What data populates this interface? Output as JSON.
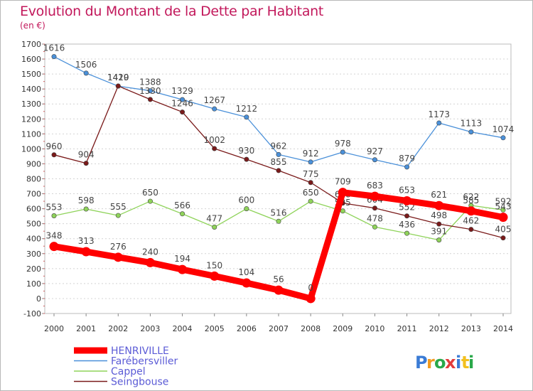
{
  "header": {
    "title": "Evolution du Montant de la Dette par Habitant",
    "unit": "(en €)"
  },
  "logo": {
    "text": "Proxiti",
    "colors": [
      "#3a7bd5",
      "#f29b1f",
      "#2aa84a",
      "#e23b3b",
      "#3a7bd5",
      "#f2c01f",
      "#2aa84a"
    ]
  },
  "chart_data": {
    "type": "line",
    "x": [
      "2000",
      "2001",
      "2002",
      "2003",
      "2004",
      "2005",
      "2006",
      "2007",
      "2008",
      "2009",
      "2010",
      "2011",
      "2012",
      "2013",
      "2014"
    ],
    "ylim": [
      -100,
      1700
    ],
    "yticks": [
      -100,
      0,
      100,
      200,
      300,
      400,
      500,
      600,
      700,
      800,
      900,
      1000,
      1100,
      1200,
      1300,
      1400,
      1500,
      1600,
      1700
    ],
    "grid": true,
    "legend_position": "bottom-left",
    "series": [
      {
        "name": "HENRIVILLE",
        "color": "#ff0000",
        "thick": true,
        "values": [
          348,
          313,
          276,
          240,
          194,
          150,
          104,
          56,
          0,
          709,
          683,
          653,
          621,
          585,
          543
        ],
        "labels": [
          "348",
          "313",
          "276",
          "240",
          "194",
          "150",
          "104",
          "56",
          "0",
          "709",
          "683",
          "653",
          "621",
          "585",
          "543"
        ]
      },
      {
        "name": "Farébersviller",
        "color": "#4a90d9",
        "thick": false,
        "values": [
          1616,
          1506,
          1419,
          1388,
          1329,
          1267,
          1212,
          962,
          912,
          978,
          927,
          879,
          1173,
          1113,
          1074
        ],
        "labels": [
          "1616",
          "1506",
          "1419",
          "1388",
          "1329",
          "1267",
          "1212",
          "962",
          "912",
          "978",
          "927",
          "879",
          "1173",
          "1113",
          "1074"
        ]
      },
      {
        "name": "Cappel",
        "color": "#8fd35a",
        "thick": false,
        "values": [
          553,
          598,
          555,
          650,
          566,
          477,
          600,
          516,
          650,
          585,
          478,
          436,
          391,
          622,
          592
        ],
        "labels": [
          "553",
          "598",
          "555",
          "650",
          "566",
          "477",
          "600",
          "516",
          "650",
          "585",
          "478",
          "436",
          "391",
          "622",
          "592"
        ]
      },
      {
        "name": "Seingbouse",
        "color": "#7a1a1a",
        "thick": false,
        "values": [
          960,
          904,
          1420,
          1330,
          1246,
          1002,
          930,
          855,
          775,
          638,
          604,
          552,
          498,
          462,
          405
        ],
        "labels": [
          "960",
          "904",
          "1420",
          "1330",
          "1246",
          "1002",
          "930",
          "855",
          "775",
          "638",
          "604",
          "552",
          "498",
          "462",
          "405"
        ]
      }
    ]
  }
}
